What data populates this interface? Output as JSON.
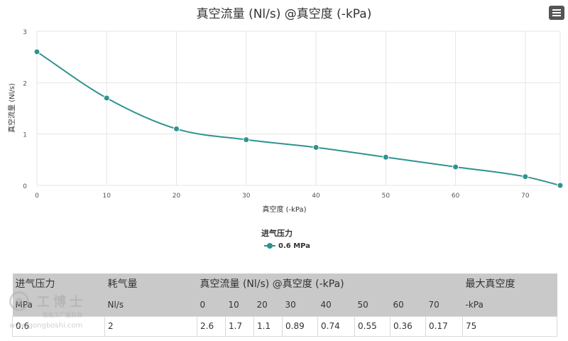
{
  "chart_data": {
    "type": "line",
    "title": "真空流量 (Nl/s) @真空度 (-kPa)",
    "xlabel": "真空度 (-kPa)",
    "ylabel": "真空流量 (Nl/s)",
    "xlim": [
      0,
      75
    ],
    "ylim": [
      0,
      3
    ],
    "x_ticks": [
      0,
      10,
      20,
      30,
      40,
      50,
      60,
      70
    ],
    "y_ticks": [
      0,
      1,
      2,
      3
    ],
    "grid": true,
    "legend_title": "进气压力",
    "legend_position": "bottom-center",
    "series": [
      {
        "name": "0.6 MPa",
        "color": "#2e9390",
        "x": [
          0,
          10,
          20,
          30,
          40,
          50,
          60,
          70,
          75
        ],
        "y": [
          2.6,
          1.7,
          1.1,
          0.89,
          0.74,
          0.55,
          0.36,
          0.17,
          0
        ]
      }
    ]
  },
  "menu": {
    "icon": "hamburger-menu-icon"
  },
  "table": {
    "header_top": {
      "pressure": "进气压力",
      "consumption": "耗气量",
      "flow": "真空流量 (Nl/s) @真空度 (-kPa)",
      "max_vacuum": "最大真空度"
    },
    "header_units": {
      "pressure": "MPa",
      "consumption": "Nl/s",
      "vacuum_levels": [
        "0",
        "10",
        "20",
        "30",
        "40",
        "50",
        "60",
        "70"
      ],
      "max_vacuum": "-kPa"
    },
    "row": {
      "pressure": "0.6",
      "consumption": "2",
      "flows": [
        "2.6",
        "1.7",
        "1.1",
        "0.89",
        "0.74",
        "0.55",
        "0.36",
        "0.17"
      ],
      "max_vacuum": "75"
    }
  },
  "watermark": {
    "name": "工博士",
    "subtitle": "智能工厂服务商",
    "url": "www.gongboshi.com"
  }
}
